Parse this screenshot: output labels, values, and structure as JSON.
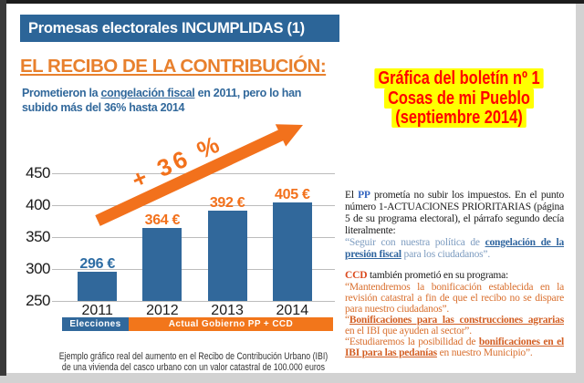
{
  "header": {
    "title": "Promesas electorales INCUMPLIDAS (1)"
  },
  "section": {
    "heading": "EL RECIBO DE LA CONTRIBUCIÓN:",
    "intro_part1": "Prometieron la ",
    "intro_underlined": "congelación fiscal",
    "intro_part2": " en 2011, pero lo han",
    "intro_line2": "subido más del 36% hasta 2014"
  },
  "callout": {
    "line1": "Gráfica del boletín nº 1",
    "line2": "Cosas de mi Pueblo",
    "line3": "(septiembre 2014)",
    "text_color": "#ff0000",
    "highlight_color": "#ffff00"
  },
  "chart_data": {
    "type": "bar",
    "categories": [
      "2011",
      "2012",
      "2013",
      "2014"
    ],
    "values": [
      296,
      364,
      392,
      405
    ],
    "value_labels": [
      "296 €",
      "364 €",
      "392 €",
      "405 €"
    ],
    "value_label_colors": [
      "#2e6da4",
      "#f2711c",
      "#f2711c",
      "#f2711c"
    ],
    "bar_color": "#31689b",
    "ylim": [
      250,
      450
    ],
    "yticks": [
      250,
      300,
      350,
      400,
      450
    ],
    "grid": true,
    "annotation": "+ 36 %",
    "annotation_color": "#f2711c",
    "legend_segments": [
      {
        "label": "Elecciones",
        "color": "#31689b"
      },
      {
        "label": "Actual Gobierno PP + CCD",
        "color": "#f2761b"
      }
    ],
    "caption_line1": "Ejemplo gráfico real del aumento en el Recibo de Contribución Urbano (IBI)",
    "caption_line2": "de una vivienda del casco urbano con un valor catastral de 100.000 euros"
  },
  "right_column": {
    "para1_pre": "El ",
    "para1_pp": "PP",
    "para1_post": " prometía no subir los impuestos. En el punto número 1-ACTUACIONES PRIORITARIAS (página 5 de su programa electoral), el párrafo segundo decía literalmente:",
    "quote1_pre": "“Seguir con nuestra política de ",
    "quote1_bold": "congelación de la presión fiscal",
    "quote1_post": " para los ciudadanos”.",
    "para2_ccd": "CCD",
    "para2_post": " también prometió en su programa:",
    "quote2": "“Mantendremos la bonificación establecida en la revisión catastral a fin de que el recibo no se dispare para nuestro ciudadanos”.",
    "quote3_pre": "“",
    "quote3_bold": "Bonificaciones para las construcciones agrarias",
    "quote3_post": " en el IBI que ayuden al sector”.",
    "quote4_pre": "“Estudiaremos la posibilidad de ",
    "quote4_bold": "bonificaciones en el IBI para las pedanías",
    "quote4_post": " en nuestro Municipio”."
  }
}
